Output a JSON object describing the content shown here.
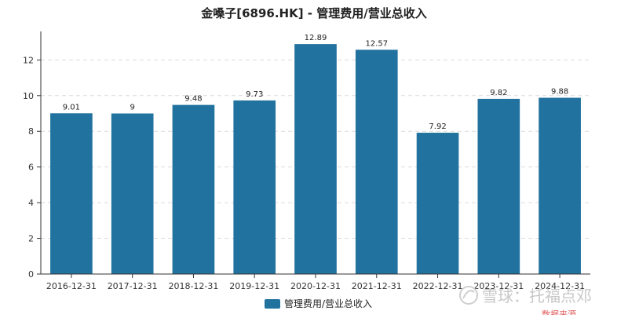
{
  "chart_data": {
    "type": "bar",
    "title": "金嗓子[6896.HK] - 管理费用/营业总收入",
    "categories": [
      "2016-12-31",
      "2017-12-31",
      "2018-12-31",
      "2019-12-31",
      "2020-12-31",
      "2021-12-31",
      "2022-12-31",
      "2023-12-31",
      "2024-12-31"
    ],
    "series": [
      {
        "name": "管理费用/营业总收入",
        "values": [
          9.01,
          9,
          9.48,
          9.73,
          12.89,
          12.57,
          7.92,
          9.82,
          9.88
        ],
        "color": "#21729e"
      }
    ],
    "value_labels": [
      "9.01",
      "9",
      "9.48",
      "9.73",
      "12.89",
      "12.57",
      "7.92",
      "9.82",
      "9.88"
    ],
    "xlabel": "",
    "ylabel": "",
    "ylim": [
      0,
      13.6
    ],
    "yticks": [
      0,
      2,
      4,
      6,
      8,
      10,
      12
    ],
    "grid": "horizontal-dashed",
    "legend_position": "bottom-center"
  },
  "watermark": {
    "logo": "雪球",
    "text": "雪球：托福点邓",
    "source_prefix": "数据来源"
  }
}
